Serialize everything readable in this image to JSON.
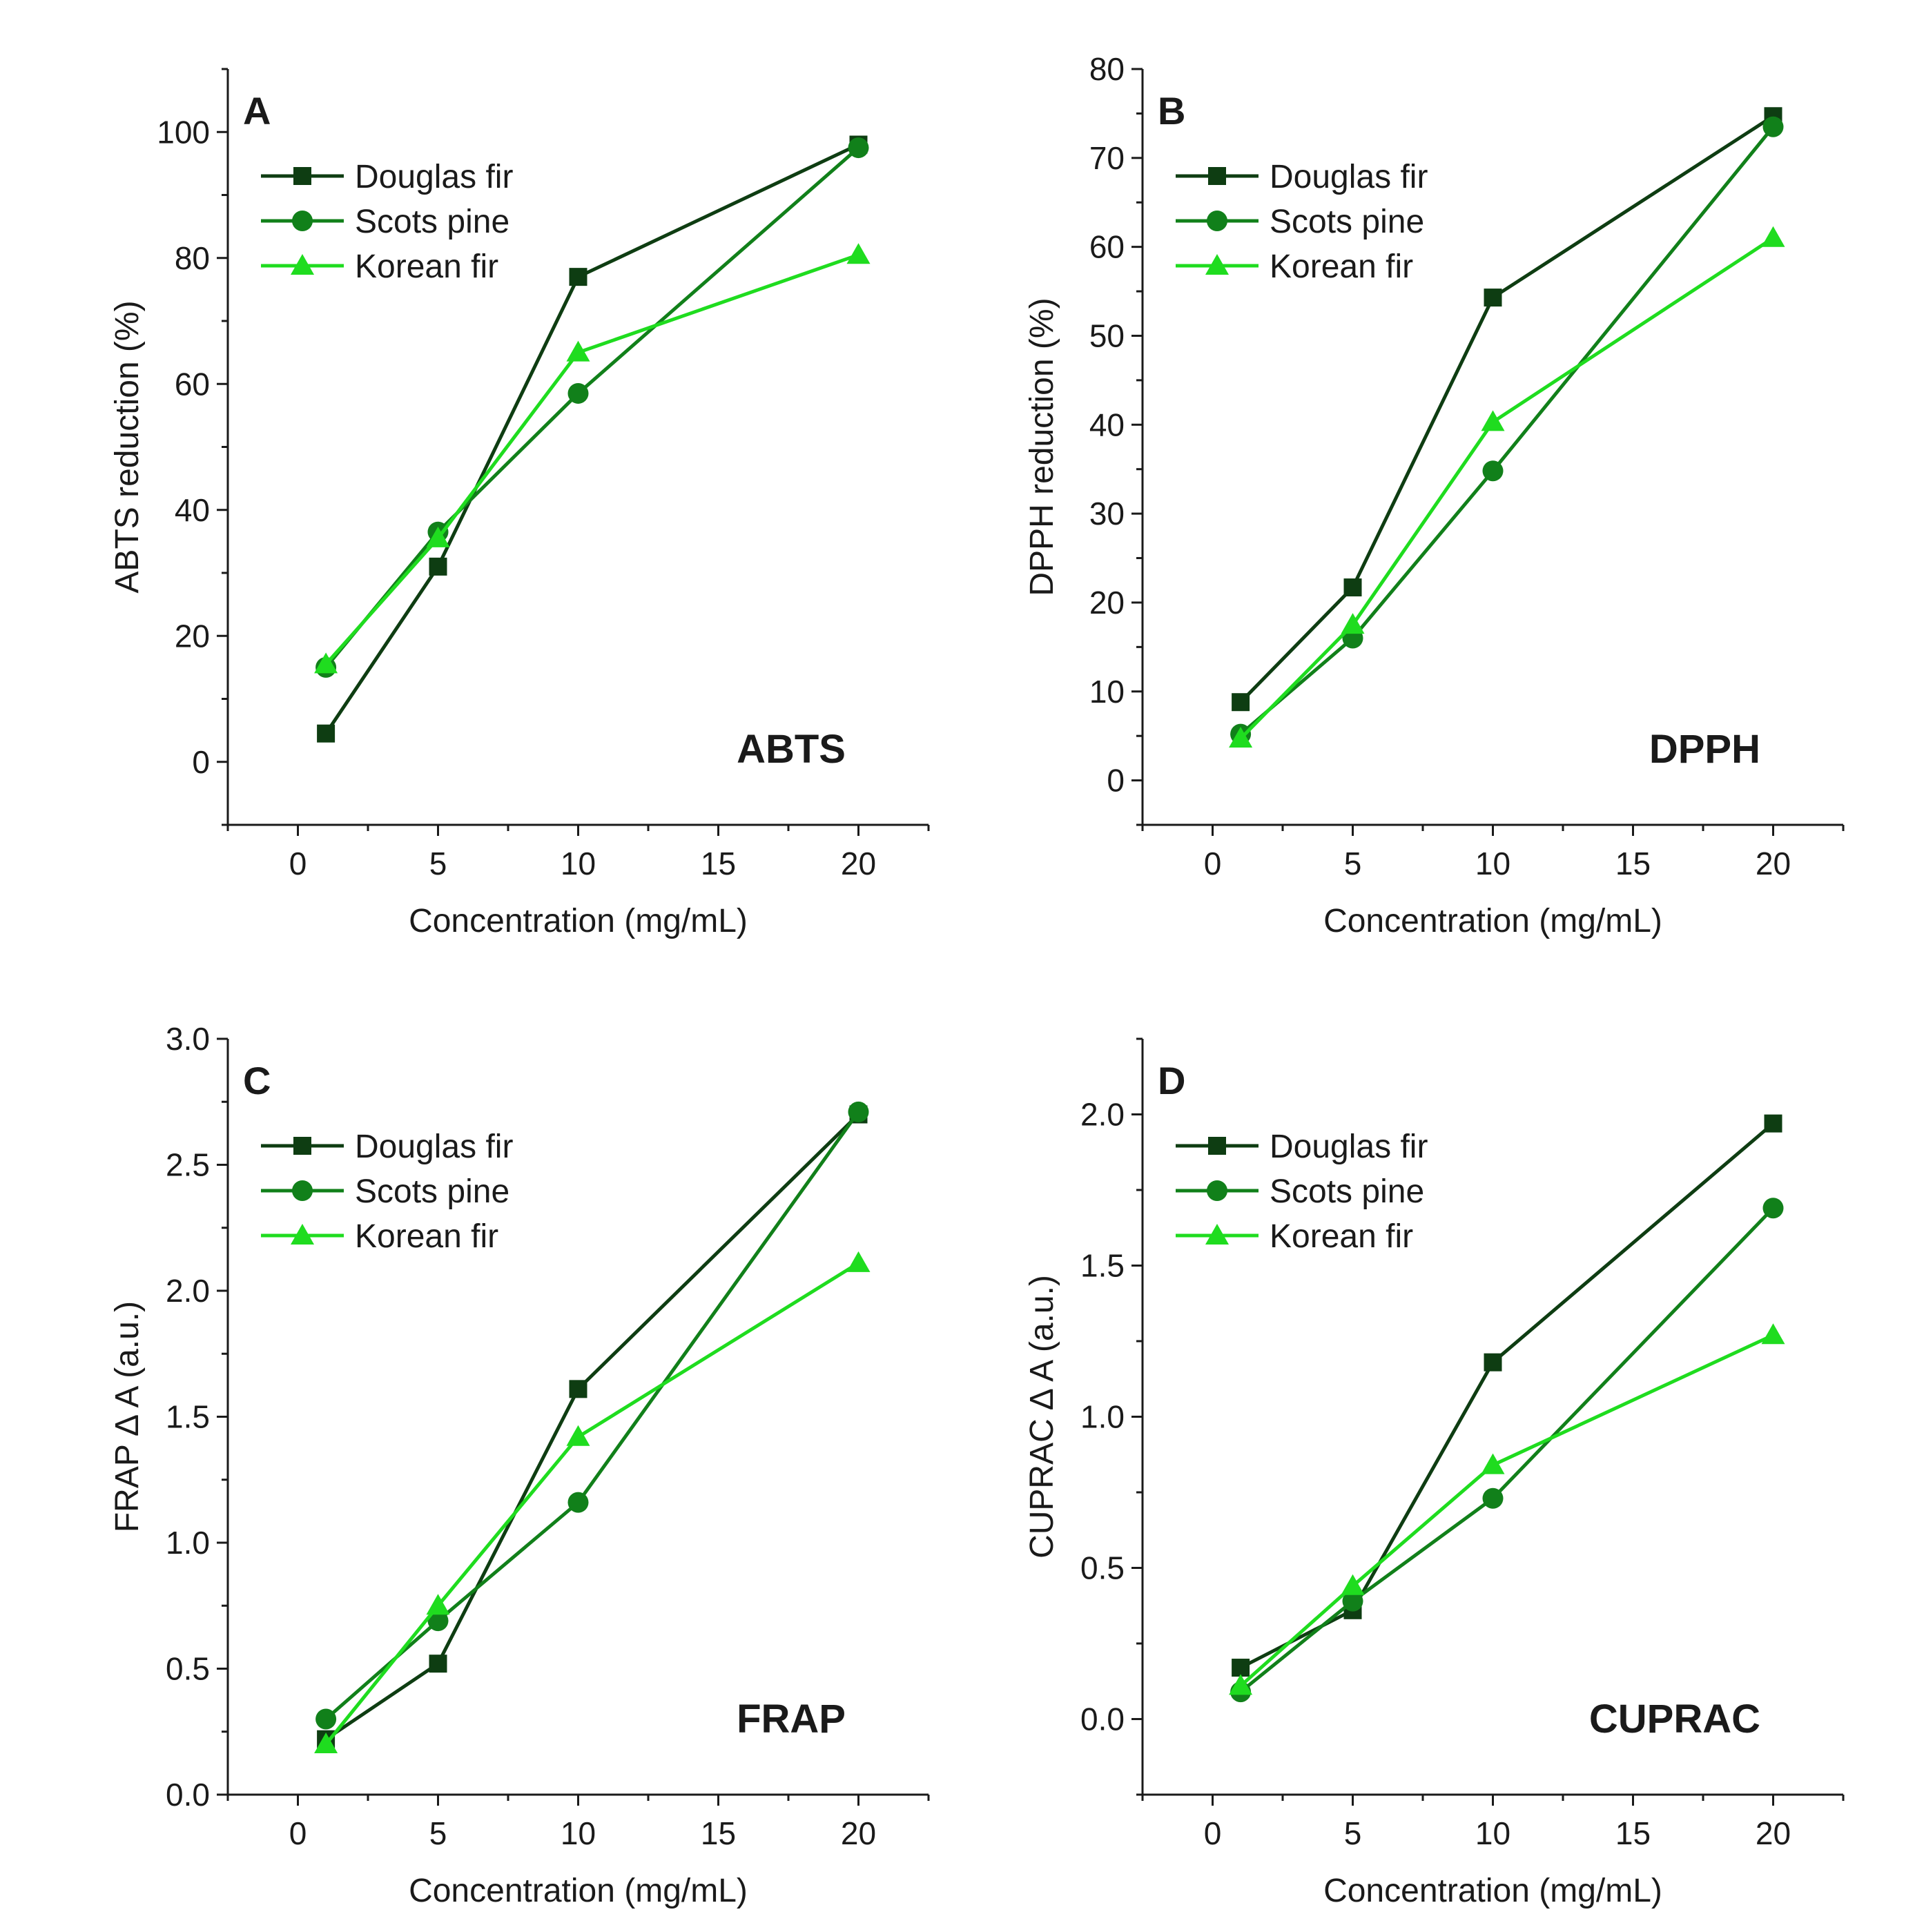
{
  "figure": {
    "background": "#ffffff"
  },
  "series_styles": [
    {
      "name": "Douglas fir",
      "color": "#0e3d12",
      "marker": "square"
    },
    {
      "name": "Scots pine",
      "color": "#11801a",
      "marker": "circle"
    },
    {
      "name": "Korean fir",
      "color": "#1fdc1f",
      "marker": "triangle"
    }
  ],
  "chart_data": [
    {
      "type": "line",
      "panel": "A",
      "title": "ABTS",
      "xlabel": "Concentration (mg/mL)",
      "ylabel": "ABTS reduction (%)",
      "xlim": [
        -2.5,
        22.5
      ],
      "ylim": [
        -10,
        110
      ],
      "xticks": [
        0,
        5,
        10,
        15,
        20
      ],
      "yticks": [
        0,
        20,
        40,
        60,
        80,
        100
      ],
      "xtick_labels": [
        "0",
        "5",
        "10",
        "15",
        "20"
      ],
      "ytick_labels": [
        "0",
        "20",
        "40",
        "60",
        "80",
        "100"
      ],
      "legend": "top-left",
      "x": [
        1,
        5,
        10,
        20
      ],
      "series": [
        {
          "name": "Douglas fir",
          "values": [
            4.5,
            31,
            77,
            98
          ]
        },
        {
          "name": "Scots pine",
          "values": [
            15,
            36.5,
            58.5,
            97.5
          ]
        },
        {
          "name": "Korean fir",
          "values": [
            15.5,
            35.5,
            65,
            80.5
          ]
        }
      ]
    },
    {
      "type": "line",
      "panel": "B",
      "title": "DPPH",
      "xlabel": "Concentration (mg/mL)",
      "ylabel": "DPPH reduction (%)",
      "xlim": [
        -2.5,
        22.5
      ],
      "ylim": [
        -5,
        80
      ],
      "xticks": [
        0,
        5,
        10,
        15,
        20
      ],
      "yticks": [
        0,
        10,
        20,
        30,
        40,
        50,
        60,
        70,
        80
      ],
      "xtick_labels": [
        "0",
        "5",
        "10",
        "15",
        "20"
      ],
      "ytick_labels": [
        "0",
        "10",
        "20",
        "30",
        "40",
        "50",
        "60",
        "70",
        "80"
      ],
      "legend": "top-left",
      "x": [
        1,
        5,
        10,
        20
      ],
      "series": [
        {
          "name": "Douglas fir",
          "values": [
            8.8,
            21.7,
            54.3,
            74.7
          ]
        },
        {
          "name": "Scots pine",
          "values": [
            5.2,
            16,
            34.8,
            73.5
          ]
        },
        {
          "name": "Korean fir",
          "values": [
            4.7,
            17.5,
            40.3,
            61
          ]
        }
      ]
    },
    {
      "type": "line",
      "panel": "C",
      "title": "FRAP",
      "xlabel": "Concentration (mg/mL)",
      "ylabel": "FRAP ∆ A (a.u.)",
      "xlim": [
        -2.5,
        22.5
      ],
      "ylim": [
        0,
        3
      ],
      "xticks": [
        0,
        5,
        10,
        15,
        20
      ],
      "yticks": [
        0,
        0.5,
        1,
        1.5,
        2,
        2.5,
        3
      ],
      "xtick_labels": [
        "0",
        "5",
        "10",
        "15",
        "20"
      ],
      "ytick_labels": [
        "0.0",
        "0.5",
        "1.0",
        "1.5",
        "2.0",
        "2.5",
        "3.0"
      ],
      "legend": "top-left",
      "x": [
        1,
        5,
        10,
        20
      ],
      "series": [
        {
          "name": "Douglas fir",
          "values": [
            0.22,
            0.52,
            1.61,
            2.7
          ]
        },
        {
          "name": "Scots pine",
          "values": [
            0.3,
            0.69,
            1.16,
            2.71
          ]
        },
        {
          "name": "Korean fir",
          "values": [
            0.2,
            0.75,
            1.42,
            2.11
          ]
        }
      ]
    },
    {
      "type": "line",
      "panel": "D",
      "title": "CUPRAC",
      "xlabel": "Concentration (mg/mL)",
      "ylabel": "CUPRAC ∆ A (a.u.)",
      "xlim": [
        -2.5,
        22.5
      ],
      "ylim": [
        -0.25,
        2.25
      ],
      "xticks": [
        0,
        5,
        10,
        15,
        20
      ],
      "yticks": [
        0,
        0.5,
        1,
        1.5,
        2
      ],
      "xtick_labels": [
        "0",
        "5",
        "10",
        "15",
        "20"
      ],
      "ytick_labels": [
        "0.0",
        "0.5",
        "1.0",
        "1.5",
        "2.0"
      ],
      "legend": "top-left",
      "x": [
        1,
        5,
        10,
        20
      ],
      "series": [
        {
          "name": "Douglas fir",
          "values": [
            0.17,
            0.36,
            1.18,
            1.97
          ]
        },
        {
          "name": "Scots pine",
          "values": [
            0.09,
            0.39,
            0.73,
            1.69
          ]
        },
        {
          "name": "Korean fir",
          "values": [
            0.11,
            0.44,
            0.84,
            1.27
          ]
        }
      ]
    }
  ]
}
